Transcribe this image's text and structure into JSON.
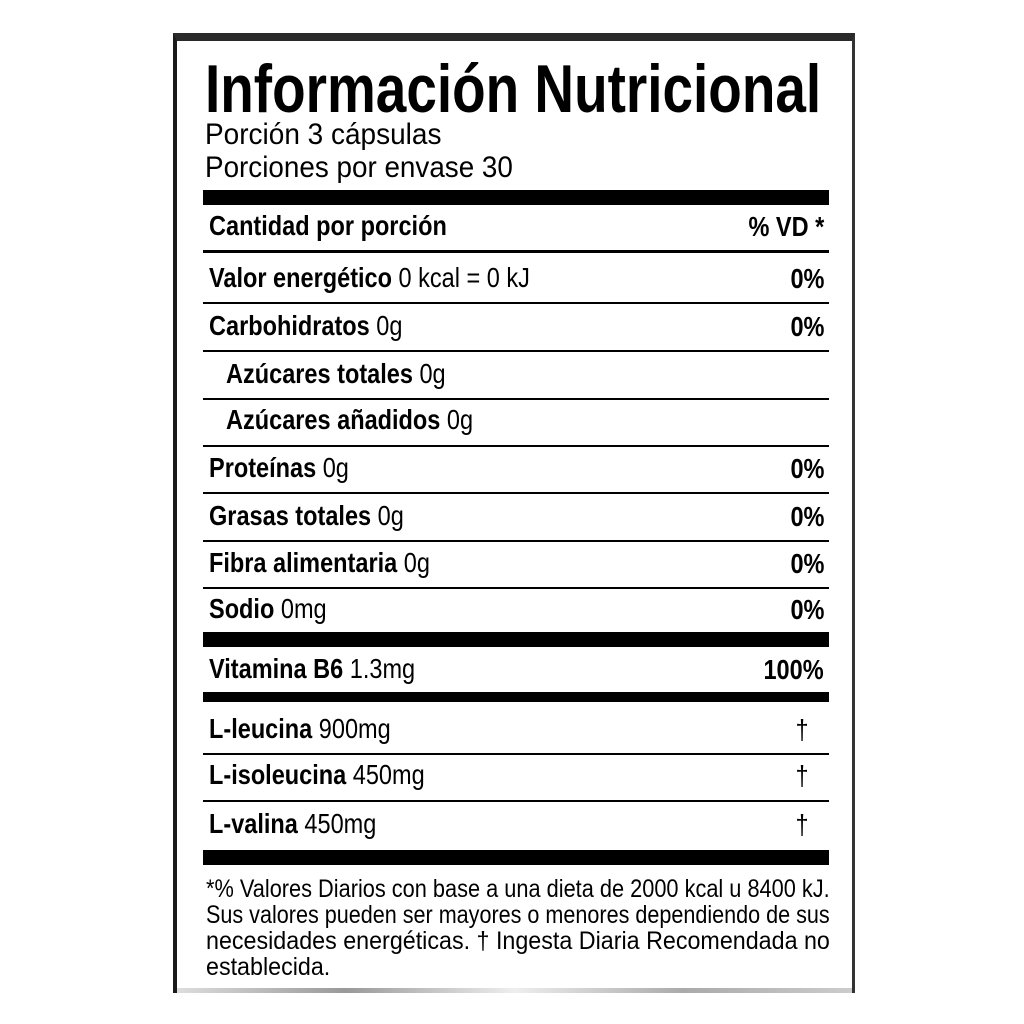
{
  "title": "Información Nutricional",
  "serving": "Porción 3 cápsulas",
  "servings_per_container": "Porciones por envase 30",
  "header": {
    "left": "Cantidad por porción",
    "right": "% VD *"
  },
  "rows": [
    {
      "name": "Valor energético",
      "amount": "0 kcal = 0 kJ",
      "dv": "0%"
    },
    {
      "name": "Carbohidratos",
      "amount": "0g",
      "dv": "0%"
    },
    {
      "name": "Azúcares totales",
      "amount": "0g",
      "dv": ""
    },
    {
      "name": "Azúcares añadidos",
      "amount": "0g",
      "dv": ""
    },
    {
      "name": "Proteínas",
      "amount": "0g",
      "dv": "0%"
    },
    {
      "name": "Grasas totales",
      "amount": "0g",
      "dv": "0%"
    },
    {
      "name": "Fibra alimentaria",
      "amount": "0g",
      "dv": "0%"
    },
    {
      "name": "Sodio",
      "amount": "0mg",
      "dv": "0%"
    },
    {
      "name": "Vitamina B6",
      "amount": "1.3mg",
      "dv": "100%"
    },
    {
      "name": "L-leucina",
      "amount": "900mg",
      "dv": "†"
    },
    {
      "name": "L-isoleucina",
      "amount": "450mg",
      "dv": "†"
    },
    {
      "name": "L-valina",
      "amount": "450mg",
      "dv": "†"
    }
  ],
  "footnote": [
    "*% Valores Diarios con base a una dieta de 2000 kcal u 8400 kJ.",
    "Sus valores pueden ser mayores o menores dependiendo de sus",
    "necesidades energéticas. † Ingesta Diaria Recomendada no",
    "establecida."
  ]
}
